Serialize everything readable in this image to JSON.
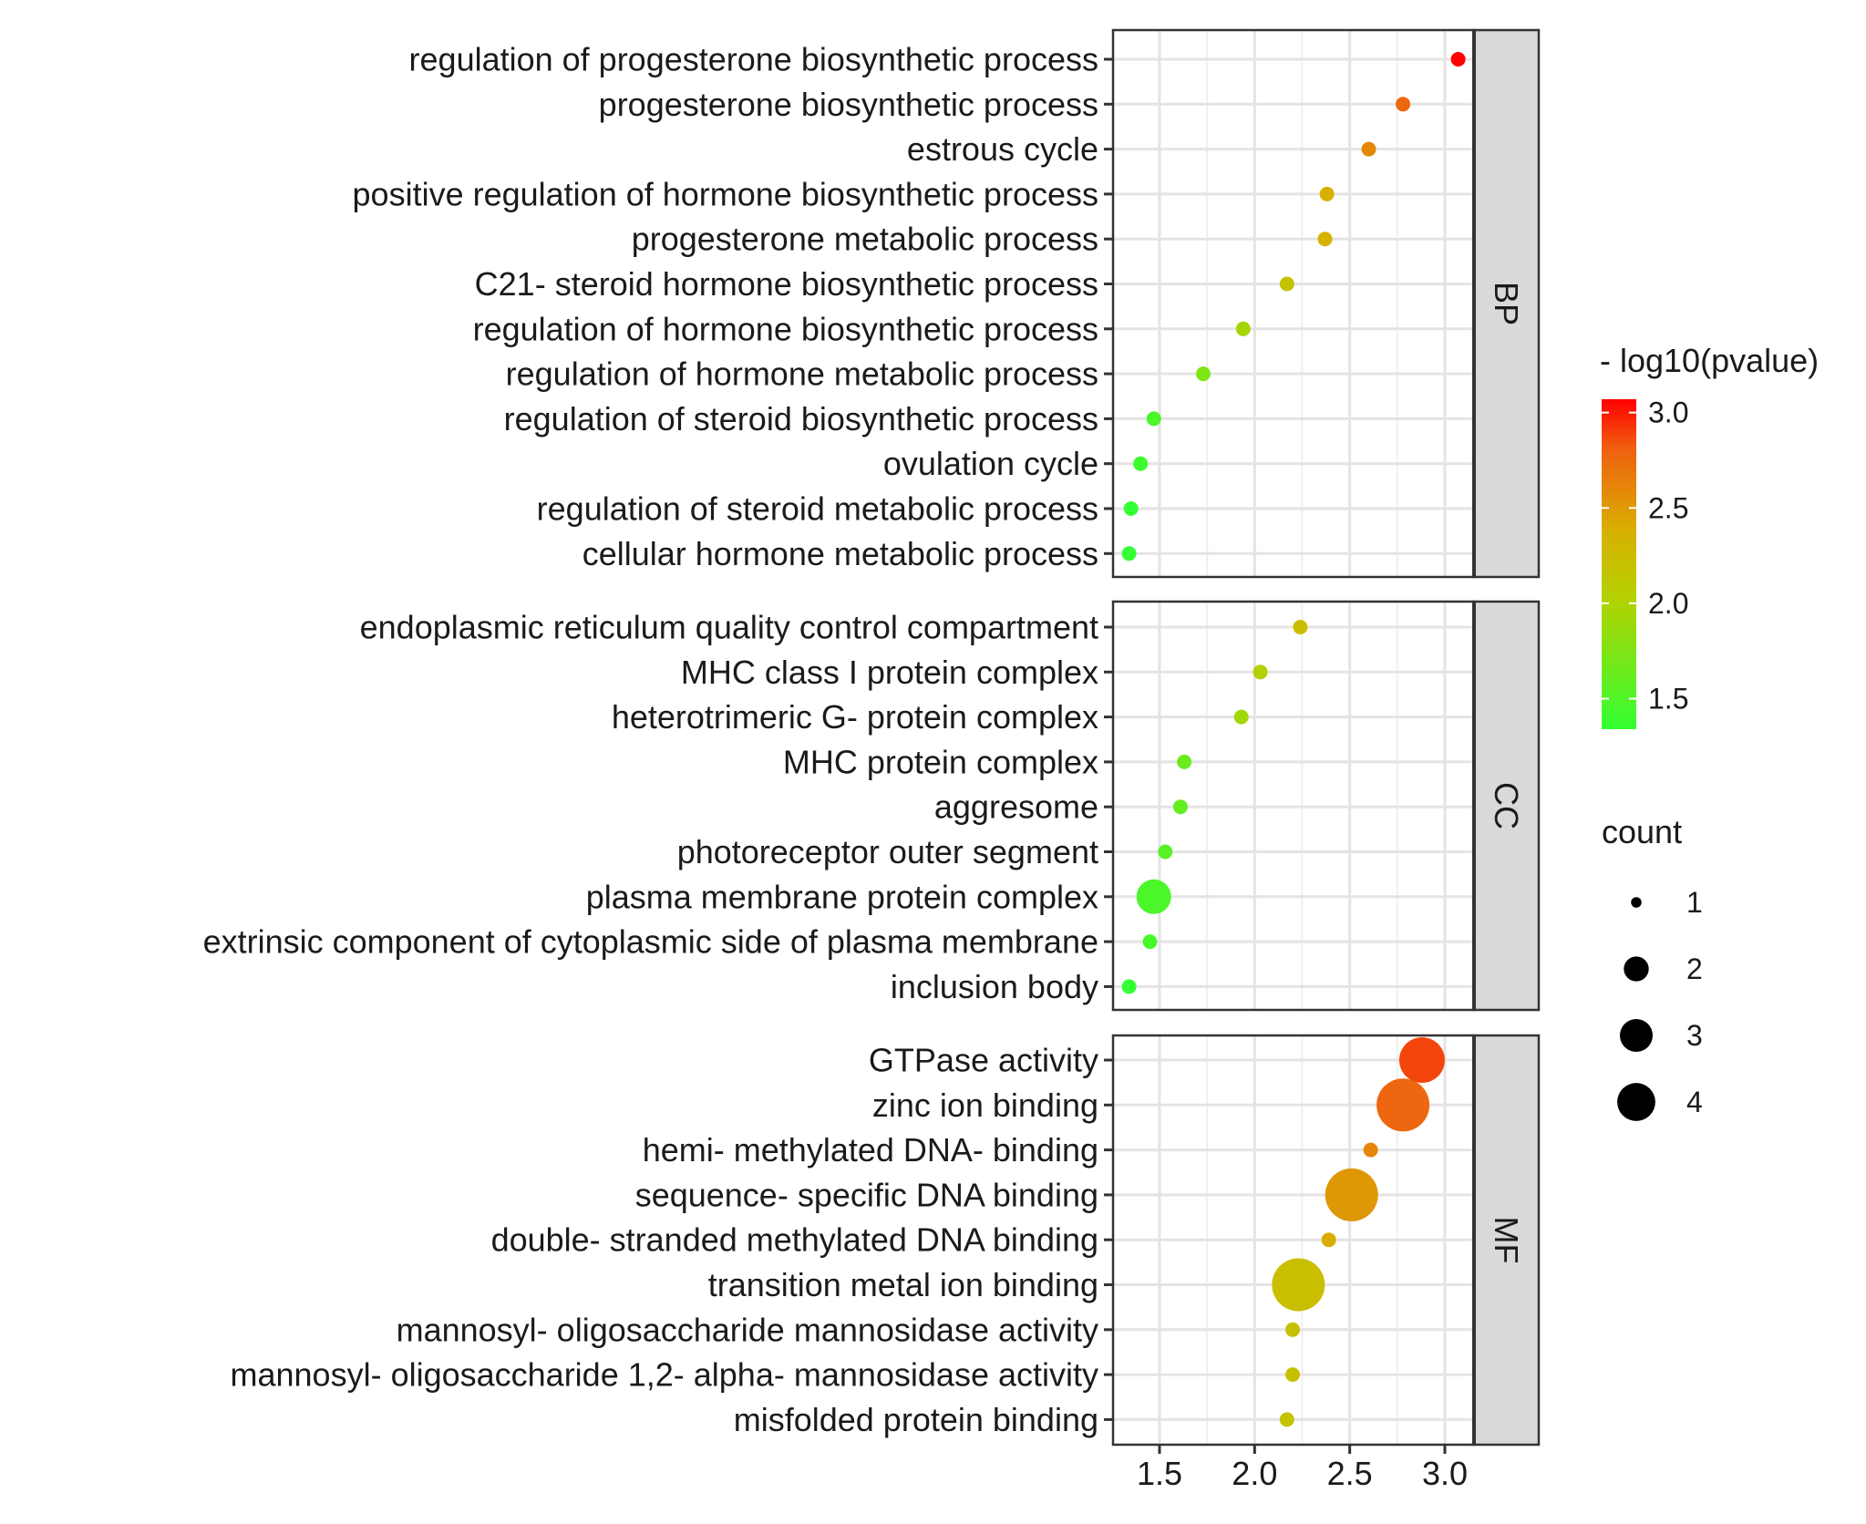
{
  "chart_data": {
    "type": "scatter",
    "title": "",
    "xlabel": "",
    "ylabel": "",
    "xlim": [
      1.3,
      3.15
    ],
    "x_ticks": [
      "1.5",
      "2.0",
      "2.5",
      "3.0"
    ],
    "x_tick_values": [
      1.5,
      2.0,
      2.5,
      3.0
    ],
    "grid": true,
    "color_variable": "- log10(pvalue)",
    "size_variable": "count",
    "color_scale": {
      "low": "#33ff33",
      "mid": "#cccc00",
      "high": "#ff0000",
      "min": 1.34,
      "max": 3.07
    },
    "facets": [
      {
        "name": "BP",
        "terms": [
          {
            "label": "regulation of progesterone biosynthetic process",
            "x": 3.07,
            "pvalue_log": 3.07,
            "count": 1
          },
          {
            "label": "progesterone biosynthetic process",
            "x": 2.78,
            "pvalue_log": 2.78,
            "count": 1
          },
          {
            "label": "estrous cycle",
            "x": 2.6,
            "pvalue_log": 2.6,
            "count": 1
          },
          {
            "label": "positive regulation of hormone biosynthetic process",
            "x": 2.38,
            "pvalue_log": 2.38,
            "count": 1
          },
          {
            "label": "progesterone metabolic process",
            "x": 2.37,
            "pvalue_log": 2.37,
            "count": 1
          },
          {
            "label": "C21- steroid hormone biosynthetic process",
            "x": 2.17,
            "pvalue_log": 2.17,
            "count": 1
          },
          {
            "label": "regulation of hormone biosynthetic process",
            "x": 1.94,
            "pvalue_log": 1.94,
            "count": 1
          },
          {
            "label": "regulation of hormone metabolic process",
            "x": 1.73,
            "pvalue_log": 1.73,
            "count": 1
          },
          {
            "label": "regulation of steroid biosynthetic process",
            "x": 1.47,
            "pvalue_log": 1.47,
            "count": 1
          },
          {
            "label": "ovulation cycle",
            "x": 1.4,
            "pvalue_log": 1.4,
            "count": 1
          },
          {
            "label": "regulation of steroid metabolic process",
            "x": 1.35,
            "pvalue_log": 1.35,
            "count": 1
          },
          {
            "label": "cellular hormone metabolic process",
            "x": 1.34,
            "pvalue_log": 1.34,
            "count": 1
          }
        ]
      },
      {
        "name": "CC",
        "terms": [
          {
            "label": "endoplasmic reticulum quality control compartment",
            "x": 2.24,
            "pvalue_log": 2.24,
            "count": 1
          },
          {
            "label": "MHC class I protein complex",
            "x": 2.03,
            "pvalue_log": 2.03,
            "count": 1
          },
          {
            "label": "heterotrimeric G- protein complex",
            "x": 1.93,
            "pvalue_log": 1.93,
            "count": 1
          },
          {
            "label": "MHC protein complex",
            "x": 1.63,
            "pvalue_log": 1.63,
            "count": 1
          },
          {
            "label": "aggresome",
            "x": 1.61,
            "pvalue_log": 1.61,
            "count": 1
          },
          {
            "label": "photoreceptor outer segment",
            "x": 1.53,
            "pvalue_log": 1.53,
            "count": 1
          },
          {
            "label": "plasma membrane protein complex",
            "x": 1.47,
            "pvalue_log": 1.47,
            "count": 2
          },
          {
            "label": "extrinsic component of cytoplasmic side of plasma membrane",
            "x": 1.45,
            "pvalue_log": 1.45,
            "count": 1
          },
          {
            "label": "inclusion body",
            "x": 1.34,
            "pvalue_log": 1.34,
            "count": 1
          }
        ]
      },
      {
        "name": "MF",
        "terms": [
          {
            "label": "GTPase activity",
            "x": 2.88,
            "pvalue_log": 2.88,
            "count": 3
          },
          {
            "label": "zinc ion binding",
            "x": 2.78,
            "pvalue_log": 2.78,
            "count": 4
          },
          {
            "label": "hemi- methylated DNA- binding",
            "x": 2.61,
            "pvalue_log": 2.61,
            "count": 1
          },
          {
            "label": "sequence- specific DNA binding",
            "x": 2.51,
            "pvalue_log": 2.51,
            "count": 4
          },
          {
            "label": "double- stranded methylated DNA binding",
            "x": 2.39,
            "pvalue_log": 2.39,
            "count": 1
          },
          {
            "label": "transition metal ion binding",
            "x": 2.23,
            "pvalue_log": 2.23,
            "count": 4
          },
          {
            "label": "mannosyl- oligosaccharide mannosidase activity",
            "x": 2.2,
            "pvalue_log": 2.2,
            "count": 1
          },
          {
            "label": "mannosyl- oligosaccharide 1,2- alpha- mannosidase activity",
            "x": 2.2,
            "pvalue_log": 2.2,
            "count": 1
          },
          {
            "label": "misfolded protein binding",
            "x": 2.17,
            "pvalue_log": 2.17,
            "count": 1
          }
        ]
      }
    ],
    "legend": {
      "color": {
        "title": "- log10(pvalue)",
        "ticks": [
          "3.0",
          "2.5",
          "2.0",
          "1.5"
        ],
        "tick_values": [
          3.0,
          2.5,
          2.0,
          1.5
        ]
      },
      "size": {
        "title": "count",
        "labels": [
          "1",
          "2",
          "3",
          "4"
        ],
        "values": [
          1,
          2,
          3,
          4
        ]
      },
      "position": "right"
    }
  }
}
